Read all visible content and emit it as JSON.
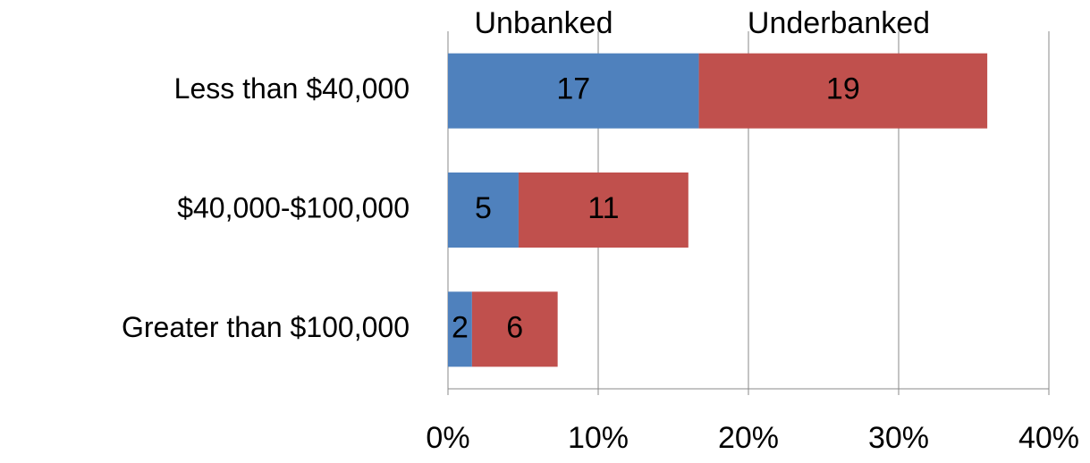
{
  "chart_data": {
    "type": "stacked_bar_horizontal",
    "categories": [
      "Less than $40,000",
      "$40,000-$100,000",
      "Greater than $100,000"
    ],
    "series": [
      {
        "name": "Unbanked",
        "color": "#4f81bd",
        "values": [
          16.7,
          4.7,
          1.6
        ],
        "value_labels": [
          "17",
          "5",
          "2"
        ]
      },
      {
        "name": "Underbanked",
        "color": "#c0504d",
        "values": [
          19.2,
          11.3,
          5.7
        ],
        "value_labels": [
          "19",
          "11",
          "6"
        ]
      }
    ],
    "xlim": [
      0,
      40
    ],
    "xticks": [
      {
        "value": 0,
        "label": "0%"
      },
      {
        "value": 10,
        "label": "10%"
      },
      {
        "value": 20,
        "label": "20%"
      },
      {
        "value": 30,
        "label": "30%"
      },
      {
        "value": 40,
        "label": "40%"
      }
    ],
    "grid": true,
    "legend": "top"
  }
}
